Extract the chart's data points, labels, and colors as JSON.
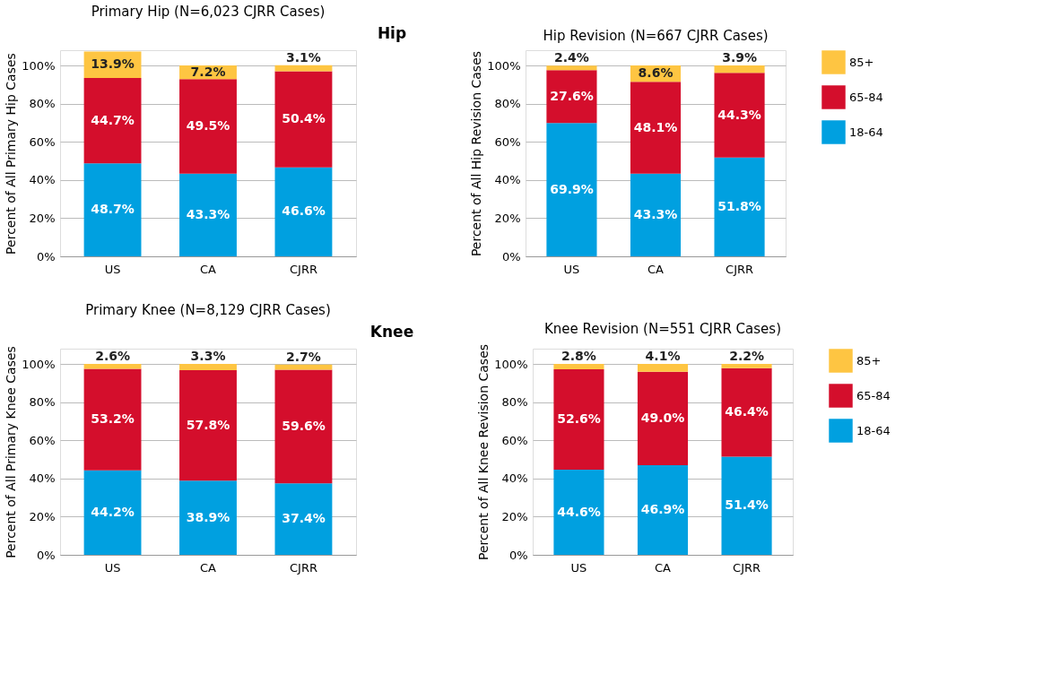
{
  "chart_data": [
    {
      "type": "bar",
      "title": "Primary Hip (N=6,023 CJRR Cases)",
      "ylabel": "Percent of All Primary Hip Cases",
      "annotations": [
        "Hip"
      ],
      "categories": [
        "US",
        "CA",
        "CJRR"
      ],
      "stacked": true,
      "legend": false,
      "grid": "y",
      "ylim": [
        0,
        108
      ],
      "yticks": [
        {
          "value": 0,
          "label": "0%"
        },
        {
          "value": 20,
          "label": "20%"
        },
        {
          "value": 40,
          "label": "40%"
        },
        {
          "value": 60,
          "label": "60%"
        },
        {
          "value": 80,
          "label": "80%"
        },
        {
          "value": 100,
          "label": "100%"
        }
      ],
      "series": [
        {
          "color": "#00a0e0",
          "values": [
            48.7,
            43.3,
            46.6
          ],
          "value_labels": [
            "48.7%",
            "43.3%",
            "46.6%"
          ]
        },
        {
          "color": "#d40e2c",
          "values": [
            44.7,
            49.5,
            50.4
          ],
          "value_labels": [
            "44.7%",
            "49.5%",
            "50.4%"
          ]
        },
        {
          "color": "#fec542",
          "values": [
            13.9,
            7.2,
            3.1
          ],
          "value_labels": [
            "13.9%",
            "7.2%",
            "3.1%"
          ]
        }
      ]
    },
    {
      "type": "bar",
      "title": "Hip Revision (N=667 CJRR Cases)",
      "ylabel": "Percent of All Hip Revision Cases",
      "categories": [
        "US",
        "CA",
        "CJRR"
      ],
      "stacked": true,
      "legend": "right",
      "grid": "y",
      "ylim": [
        0,
        108
      ],
      "yticks": [
        {
          "value": 0,
          "label": "0%"
        },
        {
          "value": 20,
          "label": "20%"
        },
        {
          "value": 40,
          "label": "40%"
        },
        {
          "value": 60,
          "label": "60%"
        },
        {
          "value": 80,
          "label": "80%"
        },
        {
          "value": 100,
          "label": "100%"
        }
      ],
      "series": [
        {
          "name": "18-64",
          "color": "#00a0e0",
          "values": [
            69.9,
            43.3,
            51.8
          ],
          "value_labels": [
            "69.9%",
            "43.3%",
            "51.8%"
          ]
        },
        {
          "name": "65-84",
          "color": "#d40e2c",
          "values": [
            27.6,
            48.1,
            44.3
          ],
          "value_labels": [
            "27.6%",
            "48.1%",
            "44.3%"
          ]
        },
        {
          "name": "85+",
          "color": "#fec542",
          "values": [
            2.4,
            8.6,
            3.9
          ],
          "value_labels": [
            "2.4%",
            "8.6%",
            "3.9%"
          ]
        }
      ]
    },
    {
      "type": "bar",
      "title": "Primary Knee (N=8,129 CJRR Cases)",
      "ylabel": "Percent of All Primary Knee Cases",
      "annotations": [
        "Knee"
      ],
      "categories": [
        "US",
        "CA",
        "CJRR"
      ],
      "stacked": true,
      "legend": false,
      "grid": "y",
      "ylim": [
        0,
        108
      ],
      "yticks": [
        {
          "value": 0,
          "label": "0%"
        },
        {
          "value": 20,
          "label": "20%"
        },
        {
          "value": 40,
          "label": "40%"
        },
        {
          "value": 60,
          "label": "60%"
        },
        {
          "value": 80,
          "label": "80%"
        },
        {
          "value": 100,
          "label": "100%"
        }
      ],
      "series": [
        {
          "color": "#00a0e0",
          "values": [
            44.2,
            38.9,
            37.4
          ],
          "value_labels": [
            "44.2%",
            "38.9%",
            "37.4%"
          ]
        },
        {
          "color": "#d40e2c",
          "values": [
            53.2,
            57.8,
            59.6
          ],
          "value_labels": [
            "53.2%",
            "57.8%",
            "59.6%"
          ]
        },
        {
          "color": "#fec542",
          "values": [
            2.6,
            3.3,
            2.7
          ],
          "value_labels": [
            "2.6%",
            "3.3%",
            "2.7%"
          ]
        }
      ]
    },
    {
      "type": "bar",
      "title": "Knee Revision (N=551 CJRR Cases)",
      "ylabel": "Percent of All Knee Revision Cases",
      "categories": [
        "US",
        "CA",
        "CJRR"
      ],
      "stacked": true,
      "legend": "right",
      "grid": "y",
      "ylim": [
        0,
        108
      ],
      "yticks": [
        {
          "value": 0,
          "label": "0%"
        },
        {
          "value": 20,
          "label": "20%"
        },
        {
          "value": 40,
          "label": "40%"
        },
        {
          "value": 60,
          "label": "60%"
        },
        {
          "value": 80,
          "label": "80%"
        },
        {
          "value": 100,
          "label": "100%"
        }
      ],
      "series": [
        {
          "name": "18-64",
          "color": "#00a0e0",
          "values": [
            44.6,
            46.9,
            51.4
          ],
          "value_labels": [
            "44.6%",
            "46.9%",
            "51.4%"
          ]
        },
        {
          "name": "65-84",
          "color": "#d40e2c",
          "values": [
            52.6,
            49.0,
            46.4
          ],
          "value_labels": [
            "52.6%",
            "49.0%",
            "46.4%"
          ]
        },
        {
          "name": "85+",
          "color": "#fec542",
          "values": [
            2.8,
            4.1,
            2.2
          ],
          "value_labels": [
            "2.8%",
            "4.1%",
            "2.2%"
          ]
        }
      ]
    }
  ]
}
